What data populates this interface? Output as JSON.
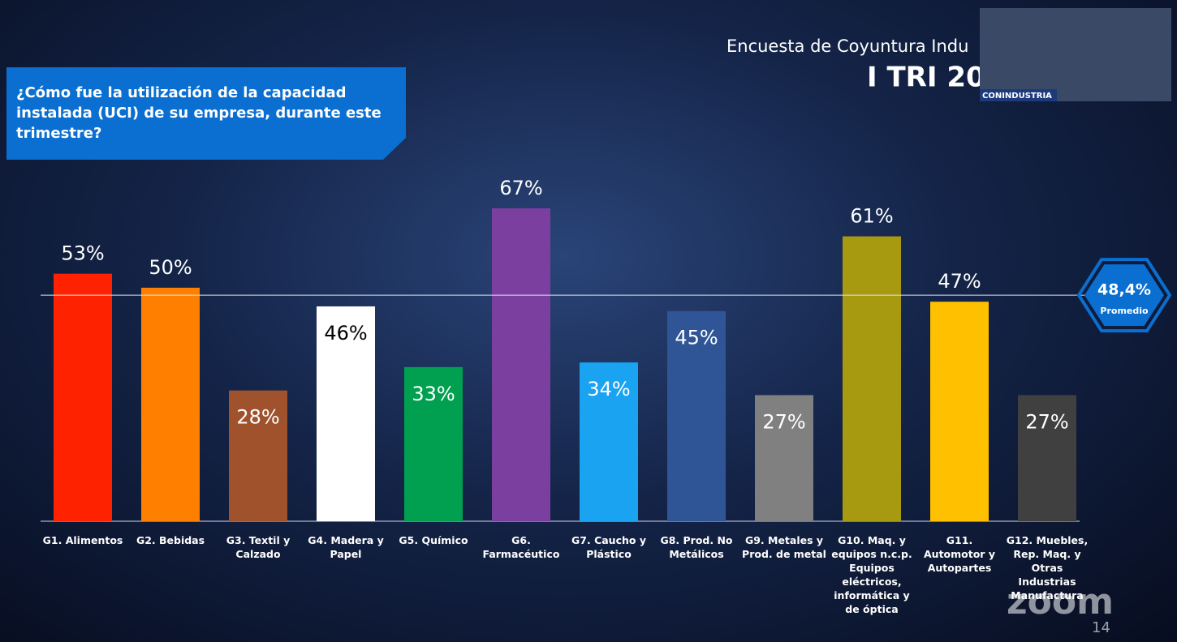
{
  "header": {
    "title": "Encuesta de Coyuntura Indu",
    "subtitle": "I TRI 20"
  },
  "question": "¿Cómo fue la utilización de la capacidad instalada (UCI) de su empresa, durante este trimestre?",
  "video_label": "CONINDUSTRIA",
  "page_number": "14",
  "footer_logo": "zoom",
  "chart_data": {
    "type": "bar",
    "categories": [
      "G1. Alimentos",
      "G2. Bebidas",
      "G3. Textil y Calzado",
      "G4. Madera y Papel",
      "G5. Químico",
      "G6. Farmacéutico",
      "G7. Caucho y Plástico",
      "G8. Prod. No Metálicos",
      "G9. Metales y Prod. de metal",
      "G10. Maq. y equipos n.c.p. Equipos eléctricos, informática y de óptica",
      "G11. Automotor y Autopartes",
      "G12. Muebles, Rep. Maq. y Otras Industrias Manufactura"
    ],
    "values": [
      53,
      50,
      28,
      46,
      33,
      67,
      34,
      45,
      27,
      61,
      47,
      27
    ],
    "value_labels": [
      "53%",
      "50%",
      "28%",
      "46%",
      "33%",
      "67%",
      "34%",
      "45%",
      "27%",
      "61%",
      "47%",
      "27%"
    ],
    "colors": [
      "#ff2200",
      "#ff7f00",
      "#a0522d",
      "#ffffff",
      "#00a050",
      "#7b3fa0",
      "#1aa3f0",
      "#2f5597",
      "#808080",
      "#a89a10",
      "#ffc000",
      "#404040"
    ],
    "value_label_colors": [
      "#ffffff",
      "#ffffff",
      "#ffffff",
      "#000000",
      "#ffffff",
      "#ffffff",
      "#ffffff",
      "#ffffff",
      "#ffffff",
      "#ffffff",
      "#ffffff",
      "#ffffff"
    ],
    "value_label_positions": [
      "above",
      "above",
      "inside",
      "inside",
      "inside",
      "above",
      "inside",
      "inside",
      "inside",
      "above",
      "above",
      "inside"
    ],
    "average": {
      "value": 48.4,
      "label": "48,4%",
      "caption": "Promedio"
    }
  }
}
